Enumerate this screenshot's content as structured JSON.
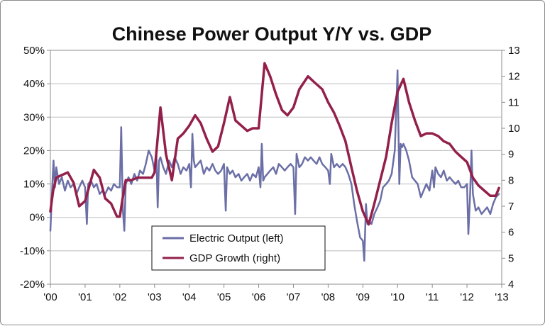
{
  "chart_data": {
    "type": "line",
    "title": "Chinese Power Output Y/Y vs. GDP",
    "xlabel": "",
    "ylabel": "",
    "x_ticks": [
      "'00",
      "'01",
      "'02",
      "'03",
      "'04",
      "'05",
      "'06",
      "'07",
      "'08",
      "'09",
      "'10",
      "'11",
      "'12",
      "'13"
    ],
    "xlim": [
      2000,
      2013
    ],
    "ylim_left": [
      -20,
      50
    ],
    "ylim_right": [
      4,
      13
    ],
    "y_ticks_left": [
      "-20%",
      "-10%",
      "0%",
      "10%",
      "20%",
      "30%",
      "40%",
      "50%"
    ],
    "y_ticks_right": [
      "4",
      "5",
      "6",
      "7",
      "8",
      "9",
      "10",
      "11",
      "12",
      "13"
    ],
    "grid": true,
    "legend_position": "bottom-center",
    "series": [
      {
        "name": "Electric Output (left)",
        "axis": "left",
        "color": "#6b6fa6",
        "points": [
          [
            2000.0,
            -4
          ],
          [
            2000.05,
            8
          ],
          [
            2000.09,
            17
          ],
          [
            2000.13,
            9
          ],
          [
            2000.17,
            15
          ],
          [
            2000.25,
            10
          ],
          [
            2000.33,
            12
          ],
          [
            2000.42,
            8
          ],
          [
            2000.5,
            11
          ],
          [
            2000.58,
            9
          ],
          [
            2000.67,
            10
          ],
          [
            2000.75,
            7
          ],
          [
            2000.83,
            9
          ],
          [
            2000.92,
            11
          ],
          [
            2001.0,
            9
          ],
          [
            2001.05,
            -2
          ],
          [
            2001.09,
            10
          ],
          [
            2001.17,
            11
          ],
          [
            2001.25,
            9
          ],
          [
            2001.33,
            10
          ],
          [
            2001.42,
            7
          ],
          [
            2001.5,
            8
          ],
          [
            2001.58,
            7
          ],
          [
            2001.67,
            9
          ],
          [
            2001.75,
            8
          ],
          [
            2001.83,
            10
          ],
          [
            2001.92,
            9
          ],
          [
            2002.0,
            9
          ],
          [
            2002.04,
            27
          ],
          [
            2002.09,
            2
          ],
          [
            2002.13,
            -4
          ],
          [
            2002.17,
            10
          ],
          [
            2002.25,
            12
          ],
          [
            2002.33,
            10
          ],
          [
            2002.42,
            13
          ],
          [
            2002.5,
            11
          ],
          [
            2002.58,
            14
          ],
          [
            2002.67,
            13
          ],
          [
            2002.75,
            16
          ],
          [
            2002.83,
            20
          ],
          [
            2002.92,
            18
          ],
          [
            2003.0,
            14
          ],
          [
            2003.05,
            20
          ],
          [
            2003.09,
            3
          ],
          [
            2003.13,
            17
          ],
          [
            2003.17,
            18
          ],
          [
            2003.25,
            15
          ],
          [
            2003.33,
            13
          ],
          [
            2003.42,
            17
          ],
          [
            2003.5,
            15
          ],
          [
            2003.58,
            18
          ],
          [
            2003.67,
            16
          ],
          [
            2003.75,
            13
          ],
          [
            2003.83,
            15
          ],
          [
            2003.92,
            14
          ],
          [
            2004.0,
            16
          ],
          [
            2004.05,
            9
          ],
          [
            2004.09,
            25
          ],
          [
            2004.13,
            17
          ],
          [
            2004.17,
            15
          ],
          [
            2004.25,
            16
          ],
          [
            2004.33,
            17
          ],
          [
            2004.42,
            13
          ],
          [
            2004.5,
            15
          ],
          [
            2004.58,
            14
          ],
          [
            2004.67,
            16
          ],
          [
            2004.75,
            14
          ],
          [
            2004.83,
            13
          ],
          [
            2004.92,
            14
          ],
          [
            2005.0,
            16
          ],
          [
            2005.05,
            2
          ],
          [
            2005.09,
            15
          ],
          [
            2005.17,
            13
          ],
          [
            2005.25,
            14
          ],
          [
            2005.33,
            12
          ],
          [
            2005.42,
            13
          ],
          [
            2005.5,
            11
          ],
          [
            2005.58,
            12
          ],
          [
            2005.67,
            13
          ],
          [
            2005.75,
            11
          ],
          [
            2005.83,
            13
          ],
          [
            2005.92,
            12
          ],
          [
            2006.0,
            15
          ],
          [
            2006.05,
            9
          ],
          [
            2006.09,
            22
          ],
          [
            2006.13,
            11
          ],
          [
            2006.17,
            12
          ],
          [
            2006.25,
            13
          ],
          [
            2006.33,
            14
          ],
          [
            2006.42,
            15
          ],
          [
            2006.5,
            13
          ],
          [
            2006.58,
            16
          ],
          [
            2006.67,
            15
          ],
          [
            2006.75,
            14
          ],
          [
            2006.83,
            15
          ],
          [
            2006.92,
            16
          ],
          [
            2007.0,
            15
          ],
          [
            2007.05,
            1
          ],
          [
            2007.09,
            19
          ],
          [
            2007.13,
            17
          ],
          [
            2007.17,
            15
          ],
          [
            2007.25,
            16
          ],
          [
            2007.33,
            18
          ],
          [
            2007.42,
            17
          ],
          [
            2007.5,
            18
          ],
          [
            2007.58,
            17
          ],
          [
            2007.67,
            16
          ],
          [
            2007.75,
            18
          ],
          [
            2007.83,
            16
          ],
          [
            2007.92,
            15
          ],
          [
            2008.0,
            14
          ],
          [
            2008.05,
            10
          ],
          [
            2008.09,
            19
          ],
          [
            2008.17,
            15
          ],
          [
            2008.25,
            16
          ],
          [
            2008.33,
            15
          ],
          [
            2008.42,
            16
          ],
          [
            2008.5,
            15
          ],
          [
            2008.58,
            13
          ],
          [
            2008.67,
            10
          ],
          [
            2008.75,
            4
          ],
          [
            2008.83,
            -1
          ],
          [
            2008.92,
            -6
          ],
          [
            2009.0,
            -7
          ],
          [
            2009.04,
            -13
          ],
          [
            2009.09,
            4
          ],
          [
            2009.13,
            -2
          ],
          [
            2009.17,
            -1
          ],
          [
            2009.25,
            -2
          ],
          [
            2009.33,
            1
          ],
          [
            2009.42,
            3
          ],
          [
            2009.5,
            5
          ],
          [
            2009.58,
            9
          ],
          [
            2009.67,
            10
          ],
          [
            2009.75,
            11
          ],
          [
            2009.83,
            13
          ],
          [
            2009.92,
            20
          ],
          [
            2010.0,
            44
          ],
          [
            2010.05,
            10
          ],
          [
            2010.09,
            22
          ],
          [
            2010.13,
            21
          ],
          [
            2010.17,
            22
          ],
          [
            2010.25,
            20
          ],
          [
            2010.33,
            17
          ],
          [
            2010.42,
            12
          ],
          [
            2010.5,
            11
          ],
          [
            2010.58,
            10
          ],
          [
            2010.67,
            6
          ],
          [
            2010.75,
            8
          ],
          [
            2010.83,
            10
          ],
          [
            2010.92,
            8
          ],
          [
            2011.0,
            14
          ],
          [
            2011.05,
            9
          ],
          [
            2011.09,
            15
          ],
          [
            2011.17,
            13
          ],
          [
            2011.25,
            12
          ],
          [
            2011.33,
            14
          ],
          [
            2011.42,
            11
          ],
          [
            2011.5,
            12
          ],
          [
            2011.58,
            11
          ],
          [
            2011.67,
            10
          ],
          [
            2011.75,
            11
          ],
          [
            2011.83,
            9
          ],
          [
            2011.92,
            9
          ],
          [
            2012.0,
            10
          ],
          [
            2012.04,
            -5
          ],
          [
            2012.09,
            7
          ],
          [
            2012.13,
            20
          ],
          [
            2012.17,
            7
          ],
          [
            2012.25,
            2
          ],
          [
            2012.33,
            3
          ],
          [
            2012.42,
            1
          ],
          [
            2012.5,
            2
          ],
          [
            2012.58,
            3
          ],
          [
            2012.67,
            1
          ],
          [
            2012.75,
            4
          ],
          [
            2012.83,
            6
          ],
          [
            2012.92,
            7
          ]
        ]
      },
      {
        "name": "GDP Growth (right)",
        "axis": "right",
        "color": "#93204b",
        "points": [
          [
            2000.0,
            6.8
          ],
          [
            2000.08,
            7.6
          ],
          [
            2000.17,
            8.1
          ],
          [
            2000.33,
            8.2
          ],
          [
            2000.5,
            8.3
          ],
          [
            2000.67,
            7.9
          ],
          [
            2000.83,
            7.0
          ],
          [
            2001.0,
            7.2
          ],
          [
            2001.17,
            8.0
          ],
          [
            2001.25,
            8.4
          ],
          [
            2001.42,
            8.1
          ],
          [
            2001.58,
            7.3
          ],
          [
            2001.75,
            7.1
          ],
          [
            2001.92,
            6.6
          ],
          [
            2002.0,
            6.6
          ],
          [
            2002.08,
            7.3
          ],
          [
            2002.17,
            8.0
          ],
          [
            2002.33,
            8.0
          ],
          [
            2002.5,
            8.1
          ],
          [
            2002.67,
            8.1
          ],
          [
            2002.92,
            8.1
          ],
          [
            2003.0,
            8.3
          ],
          [
            2003.17,
            10.8
          ],
          [
            2003.33,
            9.0
          ],
          [
            2003.5,
            8.0
          ],
          [
            2003.67,
            9.6
          ],
          [
            2003.83,
            9.8
          ],
          [
            2004.0,
            10.1
          ],
          [
            2004.17,
            10.5
          ],
          [
            2004.33,
            10.2
          ],
          [
            2004.5,
            9.6
          ],
          [
            2004.67,
            9.1
          ],
          [
            2004.83,
            9.3
          ],
          [
            2005.0,
            10.2
          ],
          [
            2005.17,
            11.2
          ],
          [
            2005.33,
            10.3
          ],
          [
            2005.5,
            10.1
          ],
          [
            2005.67,
            9.9
          ],
          [
            2005.83,
            10.0
          ],
          [
            2006.0,
            10.0
          ],
          [
            2006.17,
            12.5
          ],
          [
            2006.33,
            12.0
          ],
          [
            2006.5,
            11.3
          ],
          [
            2006.67,
            10.7
          ],
          [
            2006.83,
            10.5
          ],
          [
            2007.0,
            10.8
          ],
          [
            2007.17,
            11.5
          ],
          [
            2007.42,
            12.0
          ],
          [
            2007.58,
            11.8
          ],
          [
            2007.83,
            11.5
          ],
          [
            2008.0,
            11.0
          ],
          [
            2008.17,
            10.6
          ],
          [
            2008.33,
            10.1
          ],
          [
            2008.5,
            9.5
          ],
          [
            2008.67,
            8.5
          ],
          [
            2008.83,
            7.6
          ],
          [
            2009.0,
            6.8
          ],
          [
            2009.17,
            6.3
          ],
          [
            2009.33,
            7.1
          ],
          [
            2009.5,
            8.0
          ],
          [
            2009.67,
            8.9
          ],
          [
            2009.83,
            10.2
          ],
          [
            2010.0,
            11.4
          ],
          [
            2010.17,
            11.9
          ],
          [
            2010.33,
            11.0
          ],
          [
            2010.5,
            10.3
          ],
          [
            2010.67,
            9.7
          ],
          [
            2010.83,
            9.8
          ],
          [
            2011.0,
            9.8
          ],
          [
            2011.17,
            9.7
          ],
          [
            2011.33,
            9.5
          ],
          [
            2011.5,
            9.4
          ],
          [
            2011.67,
            9.1
          ],
          [
            2011.83,
            8.9
          ],
          [
            2012.0,
            8.7
          ],
          [
            2012.17,
            8.1
          ],
          [
            2012.33,
            7.8
          ],
          [
            2012.5,
            7.6
          ],
          [
            2012.67,
            7.4
          ],
          [
            2012.83,
            7.4
          ],
          [
            2012.92,
            7.7
          ]
        ]
      }
    ]
  }
}
